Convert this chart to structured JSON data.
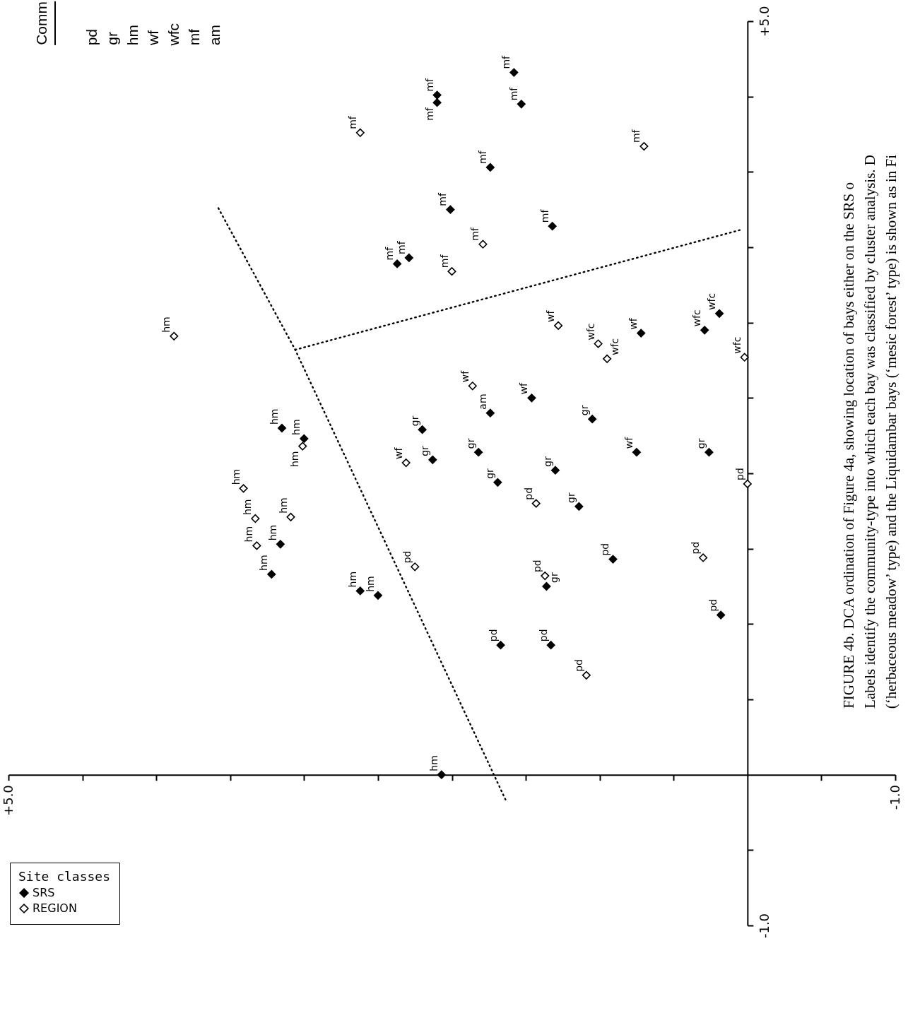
{
  "chart_data": [
    {
      "type": "scatter",
      "xlim": [
        5,
        -1
      ],
      "ylim": [
        -1,
        5
      ],
      "xticks": [
        {
          "value": 5,
          "label": "+5.0"
        },
        {
          "value": 4.5,
          "label": null
        },
        {
          "value": 4,
          "label": null
        },
        {
          "value": 3.5,
          "label": null
        },
        {
          "value": 3,
          "label": null
        },
        {
          "value": 2.5,
          "label": null
        },
        {
          "value": 2,
          "label": null
        },
        {
          "value": 1.5,
          "label": null
        },
        {
          "value": 1,
          "label": null
        },
        {
          "value": 0.5,
          "label": null
        },
        {
          "value": -0.5,
          "label": null
        },
        {
          "value": -1,
          "label": "-1.0"
        }
      ],
      "yticks": [
        {
          "value": -1,
          "label": "-1.0"
        },
        {
          "value": -0.5,
          "label": null
        },
        {
          "value": 0.5,
          "label": null
        },
        {
          "value": 1,
          "label": null
        },
        {
          "value": 1.5,
          "label": null
        },
        {
          "value": 2,
          "label": null
        },
        {
          "value": 2.5,
          "label": null
        },
        {
          "value": 3,
          "label": null
        },
        {
          "value": 3.5,
          "label": null
        },
        {
          "value": 4,
          "label": null
        },
        {
          "value": 4.5,
          "label": null
        },
        {
          "value": 5,
          "label": "+5.0"
        }
      ],
      "marker": "diamond",
      "legend": "bottom left",
      "legend_title": "Site classes",
      "grid": false,
      "series": [
        {
          "name": "SRS",
          "type": "scatter",
          "color": "#000000",
          "x": [
            2.1,
            2.1,
            1.58,
            1.53,
            1.74,
            2.01,
            1.32,
            2.37,
            2.29,
            0.72,
            0.29,
            0.19,
            1.46,
            1.74,
            1.05,
            0.75,
            0.26,
            3.15,
            3.0,
            2.2,
            2.13,
            1.82,
            1.69,
            1.3,
            1.14,
            3.16,
            3.22,
            2.62,
            2.5,
            1.36,
            0.91,
            0.18,
            1.67,
            1.33,
            2.07
          ],
          "values": [
            4.51,
            4.46,
            4.66,
            4.45,
            4.03,
            3.75,
            3.64,
            3.39,
            3.43,
            2.93,
            2.95,
            3.06,
            2.5,
            2.4,
            2.36,
            2.14,
            2.14,
            2.3,
            2.23,
            2.29,
            2.09,
            2.14,
            1.94,
            2.02,
            1.78,
            1.53,
            1.33,
            1.22,
            1.19,
            1.25,
            1.43,
            1.06,
            0.86,
            0.86,
            0.0
          ]
        },
        {
          "name": "REGION",
          "type": "scatter",
          "color": "#ffffff",
          "x": [
            2.62,
            0.7,
            1.79,
            2.0,
            3.88,
            1.28,
            1.01,
            0.95,
            0.02,
            1.86,
            0.0,
            3.01,
            2.31,
            1.43,
            3.41,
            3.33,
            3.09,
            3.32,
            2.25,
            1.37,
            0.3,
            1.09
          ],
          "values": [
            4.26,
            4.17,
            3.52,
            3.34,
            2.91,
            2.98,
            2.86,
            2.76,
            2.77,
            2.58,
            1.93,
            2.18,
            2.07,
            1.8,
            1.9,
            1.7,
            1.71,
            1.52,
            1.38,
            1.32,
            1.44,
            0.66
          ]
        },
        {
          "type": "line",
          "color": "#000000",
          "line_style": "dotted",
          "marker": "none",
          "x": [
            3.58,
            3.06,
            1.63
          ],
          "values": [
            3.76,
            2.82,
            -0.18
          ]
        },
        {
          "type": "line",
          "color": "#000000",
          "line_style": "dotted",
          "marker": "none",
          "x": [
            3.06,
            0.03
          ],
          "values": [
            2.82,
            3.62
          ]
        }
      ],
      "annotations": [
        {
          "text": "mf",
          "x": 2.1,
          "y": 4.51
        },
        {
          "text": "mf",
          "x": 2.1,
          "y": 4.46
        },
        {
          "text": "mf",
          "x": 1.58,
          "y": 4.66
        },
        {
          "text": "mf",
          "x": 1.53,
          "y": 4.45
        },
        {
          "text": "mf",
          "x": 1.74,
          "y": 4.03
        },
        {
          "text": "mf",
          "x": 2.01,
          "y": 3.75
        },
        {
          "text": "mf",
          "x": 1.32,
          "y": 3.64
        },
        {
          "text": "mf",
          "x": 2.37,
          "y": 3.39
        },
        {
          "text": "mf",
          "x": 2.29,
          "y": 3.43
        },
        {
          "text": "wf",
          "x": 0.72,
          "y": 2.93
        },
        {
          "text": "wfc",
          "x": 0.29,
          "y": 2.95
        },
        {
          "text": "wfc",
          "x": 0.19,
          "y": 3.06
        },
        {
          "text": "wf",
          "x": 1.46,
          "y": 2.5
        },
        {
          "text": "am",
          "x": 1.74,
          "y": 2.4
        },
        {
          "text": "gr",
          "x": 1.05,
          "y": 2.36
        },
        {
          "text": "wf",
          "x": 0.75,
          "y": 2.14
        },
        {
          "text": "gr",
          "x": 0.26,
          "y": 2.14
        },
        {
          "text": "hm",
          "x": 3.15,
          "y": 2.3
        },
        {
          "text": "hm",
          "x": 3.0,
          "y": 2.23
        },
        {
          "text": "gr",
          "x": 2.2,
          "y": 2.29
        },
        {
          "text": "gr",
          "x": 2.13,
          "y": 2.09
        },
        {
          "text": "gr",
          "x": 1.82,
          "y": 2.14
        },
        {
          "text": "gr",
          "x": 1.69,
          "y": 1.94
        },
        {
          "text": "gr",
          "x": 1.3,
          "y": 2.02
        },
        {
          "text": "gr",
          "x": 1.14,
          "y": 1.78
        },
        {
          "text": "hm",
          "x": 3.16,
          "y": 1.53
        },
        {
          "text": "hm",
          "x": 3.22,
          "y": 1.33
        },
        {
          "text": "hm",
          "x": 2.62,
          "y": 1.22
        },
        {
          "text": "hm",
          "x": 2.5,
          "y": 1.19
        },
        {
          "text": "gr",
          "x": 1.36,
          "y": 1.25
        },
        {
          "text": "pd",
          "x": 0.91,
          "y": 1.43
        },
        {
          "text": "pd",
          "x": 0.18,
          "y": 1.06
        },
        {
          "text": "pd",
          "x": 1.67,
          "y": 0.86
        },
        {
          "text": "pd",
          "x": 1.33,
          "y": 0.86
        },
        {
          "text": "hm",
          "x": 2.07,
          "y": 0.0
        },
        {
          "text": "mf",
          "x": 2.62,
          "y": 4.26
        },
        {
          "text": "mf",
          "x": 0.7,
          "y": 4.17
        },
        {
          "text": "mf",
          "x": 1.79,
          "y": 3.52
        },
        {
          "text": "mf",
          "x": 2.0,
          "y": 3.34
        },
        {
          "text": "hm",
          "x": 3.88,
          "y": 2.91
        },
        {
          "text": "wf",
          "x": 1.28,
          "y": 2.98
        },
        {
          "text": "wfc",
          "x": 1.01,
          "y": 2.86
        },
        {
          "text": "wfc",
          "x": 0.95,
          "y": 2.76
        },
        {
          "text": "wfc",
          "x": 0.02,
          "y": 2.77
        },
        {
          "text": "wf",
          "x": 1.86,
          "y": 2.58
        },
        {
          "text": "pd",
          "x": 0.0,
          "y": 1.93
        },
        {
          "text": "hm",
          "x": 3.01,
          "y": 2.18
        },
        {
          "text": "wf",
          "x": 2.31,
          "y": 2.07
        },
        {
          "text": "pd",
          "x": 1.43,
          "y": 1.8
        },
        {
          "text": "hm",
          "x": 3.41,
          "y": 1.9
        },
        {
          "text": "hm",
          "x": 3.33,
          "y": 1.7
        },
        {
          "text": "hm",
          "x": 3.09,
          "y": 1.71
        },
        {
          "text": "hm",
          "x": 3.32,
          "y": 1.52
        },
        {
          "text": "pd",
          "x": 2.25,
          "y": 1.38
        },
        {
          "text": "pd",
          "x": 1.37,
          "y": 1.32
        },
        {
          "text": "pd",
          "x": 0.3,
          "y": 1.44
        },
        {
          "text": "pd",
          "x": 1.09,
          "y": 0.66
        },
        "FIGURE 4b.  DCA ordination of Figure 4a, showing location of bays either on the SRS o",
        "Labels identify the community-type into which each bay was classified by cluster analysis.  D",
        "(‘herbaceous meadow’ type) and the Liquidambar bays (‘mesic forest’ type) is shown as in Fi"
      ]
    },
    {
      "type": "other",
      "title": "Comm",
      "annotations": [
        "pd",
        "gr",
        "hm",
        "wf",
        "wfc",
        "mf",
        "am"
      ]
    }
  ]
}
